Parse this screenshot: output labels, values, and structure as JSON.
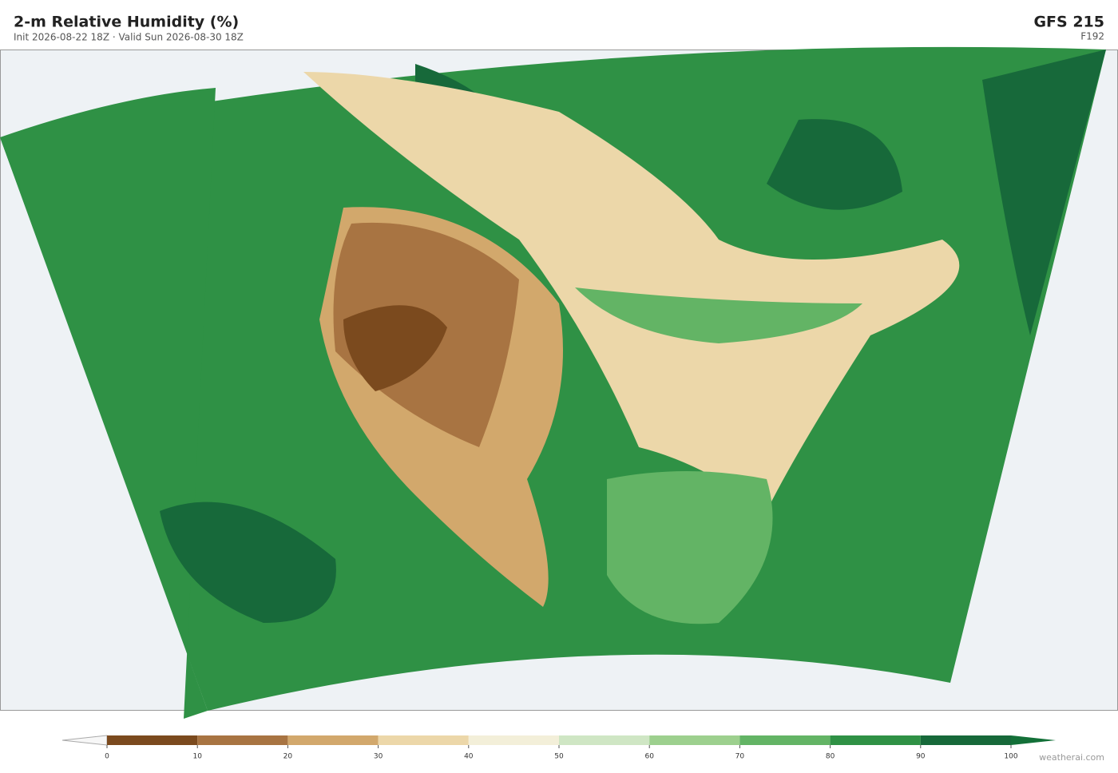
{
  "header": {
    "title": "2-m Relative Humidity  (%)",
    "subtitle": "Init 2026-08-22 18Z  ·  Valid Sun 2026-08-30 18Z",
    "model": "GFS  215",
    "forecast_hour": "F192"
  },
  "colorbar": {
    "ticks": [
      0,
      10,
      20,
      30,
      40,
      50,
      60,
      70,
      80,
      90,
      100
    ],
    "colors": [
      "#7b4a1e",
      "#a87442",
      "#d2a86c",
      "#ecd7a9",
      "#f3efd9",
      "#cfe6c4",
      "#9dd08e",
      "#63b465",
      "#2f9145",
      "#17693a"
    ],
    "under_color": "#f7f7f7",
    "over_color": "#137038"
  },
  "footer": {
    "credit": "weatherai.com"
  }
}
